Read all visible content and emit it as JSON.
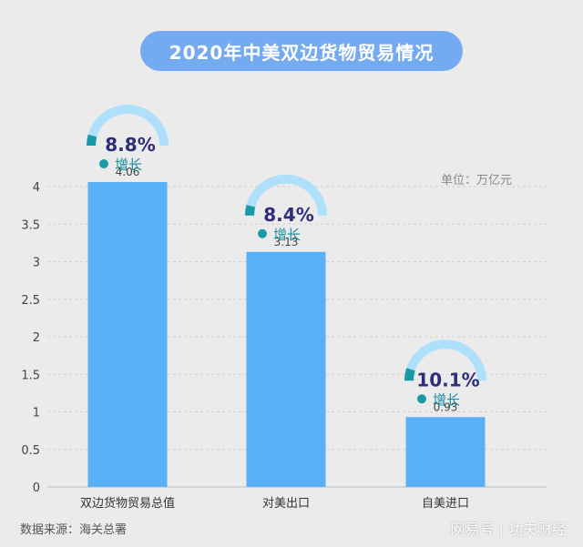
{
  "chart_data": {
    "type": "bar",
    "title": "2020年中美双边货物贸易情况",
    "unit_label": "单位：万亿元",
    "categories": [
      "双边货物贸易总值",
      "对美出口",
      "自美进口"
    ],
    "values": [
      4.06,
      3.13,
      0.93
    ],
    "value_labels": [
      "4.06",
      "3.13",
      "0.93"
    ],
    "growth": [
      {
        "pct": "8.8%",
        "label": "增长",
        "fill": 0.088
      },
      {
        "pct": "8.4%",
        "label": "增长",
        "fill": 0.084
      },
      {
        "pct": "10.1%",
        "label": "增长",
        "fill": 0.101
      }
    ],
    "ylim": [
      0,
      4
    ],
    "yticks": [
      "0",
      "0.5",
      "1",
      "1.5",
      "2",
      "2.5",
      "3",
      "3.5",
      "4"
    ],
    "grid": true,
    "colors": {
      "bar": "#5ab0f7",
      "arc": "#aee0fb",
      "arc_accent": "#1a9aa8",
      "pct_text": "#2f2d7a",
      "dot": "#1a9aa8",
      "grow_text": "#1a8ea0"
    }
  },
  "footer": {
    "source": "数据来源：海关总署",
    "watermark": "网易号 | 功夫财经"
  }
}
